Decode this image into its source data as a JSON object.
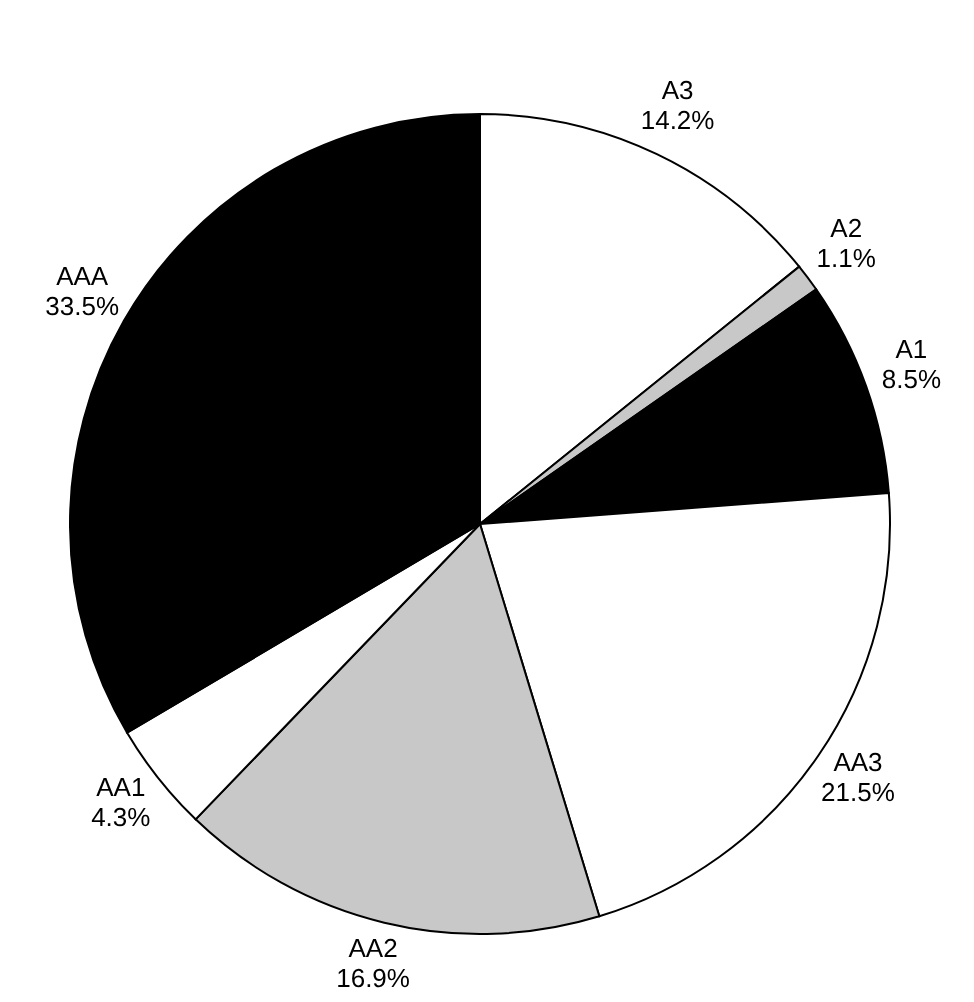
{
  "chart_data": {
    "type": "pie",
    "categories": [
      "A3",
      "A2",
      "A1",
      "AA3",
      "AA2",
      "AA1",
      "AAA"
    ],
    "values": [
      14.2,
      1.1,
      8.5,
      21.5,
      16.9,
      4.3,
      33.5
    ],
    "value_labels": [
      "14.2%",
      "1.1%",
      "8.5%",
      "21.5%",
      "16.9%",
      "4.3%",
      "33.5%"
    ],
    "colors": [
      "#ffffff",
      "#c8c8c8",
      "#000000",
      "#ffffff",
      "#c8c8c8",
      "#ffffff",
      "#000000"
    ]
  }
}
